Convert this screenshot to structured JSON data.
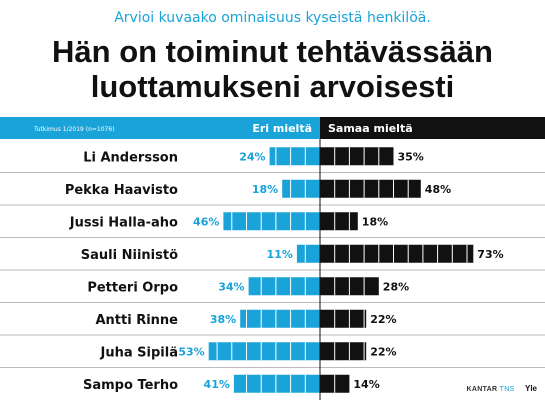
{
  "header": {
    "subtitle": "Arvioi kuvaako ominaisuus kyseistä henkilöä.",
    "title_line1": "Hän on toiminut tehtävässään",
    "title_line2": "luottamukseni arvoisesti"
  },
  "footer": {
    "kantar": "KANTAR",
    "tns": "TNS",
    "yle": "Yle"
  },
  "colors": {
    "disagree": "#1aa3d9",
    "agree": "#111111",
    "row_line": "#bbbbbb"
  },
  "chart_data": {
    "type": "bar",
    "note": "Tutkimus 1/2019 (n=1076)",
    "categories": [
      "Li Andersson",
      "Pekka Haavisto",
      "Jussi Halla-aho",
      "Sauli Niinistö",
      "Petteri Orpo",
      "Antti Rinne",
      "Juha Sipilä",
      "Sampo Terho"
    ],
    "series": [
      {
        "name": "Eri mieltä",
        "values": [
          24,
          18,
          46,
          11,
          34,
          38,
          53,
          41
        ]
      },
      {
        "name": "Samaa mieltä",
        "values": [
          35,
          48,
          18,
          73,
          28,
          22,
          22,
          14
        ]
      }
    ],
    "value_suffix": "%",
    "xlim": [
      0,
      100
    ],
    "grid": false
  }
}
